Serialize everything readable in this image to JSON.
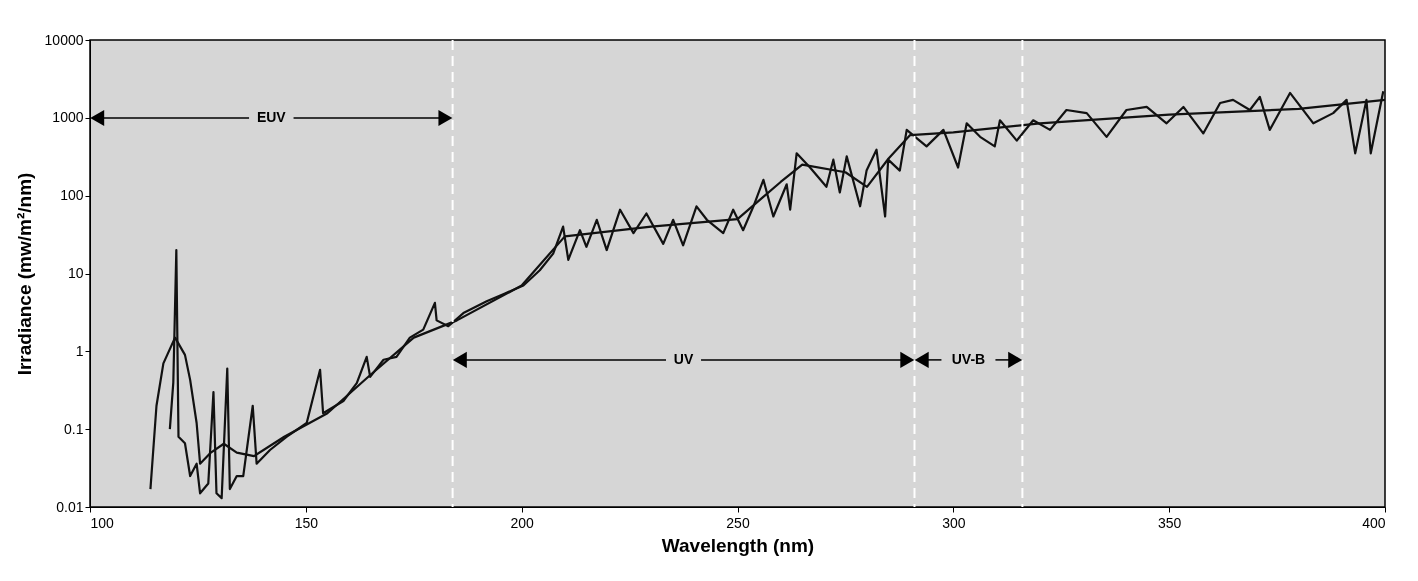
{
  "chart_data": {
    "type": "line",
    "xlabel": "Wavelength (nm)",
    "ylabel": "Irradiance (mw/m²/nm)",
    "log": "y",
    "xlim": [
      100,
      400
    ],
    "ylim": [
      0.01,
      10000
    ],
    "xticks": [
      100,
      150,
      200,
      250,
      300,
      350,
      400
    ],
    "yticks": [
      0.01,
      0.1,
      1,
      10,
      100,
      1000,
      10000
    ],
    "grid": false,
    "line_style": "solid",
    "series": [
      {
        "color": "#111111",
        "x": [
          118.5,
          119.3,
          120,
          120.5,
          122,
          123.2,
          124.7,
          125.5,
          127.4,
          128.6,
          129.3,
          130.5,
          131.8,
          132.4,
          134,
          135.5,
          137.7,
          138.6,
          141.7,
          145.6,
          150.2,
          153.3,
          154,
          158.7,
          161.8,
          164.1,
          164.9,
          168,
          171,
          174.1,
          177.2,
          179.9,
          180.3,
          183,
          186.5,
          191.9,
          196,
          200.4,
          204.2,
          207.3,
          209.6,
          210.8,
          213.5,
          215,
          217.4,
          219.7,
          222.8,
          225.9,
          228.9,
          232.8,
          235.1,
          237.4,
          240.5,
          242.9,
          246.7,
          249,
          251.3,
          253.7,
          256,
          258.3,
          261.4,
          262.2,
          263.7,
          266.8,
          270.6,
          272.2,
          273.7,
          275.3,
          278.4,
          279.9,
          282.2,
          284.2,
          284.9,
          287.6,
          289.2,
          293.8,
          297.7,
          301.1,
          303.1,
          306.2,
          309.6,
          310.8,
          314.7,
          318.5,
          322.4,
          326.2,
          330.9,
          335.5,
          340.1,
          344.8,
          349.4,
          353.3,
          357.9,
          361.8,
          364.8,
          368.7,
          371,
          373.3,
          378,
          383.4,
          388,
          391.1,
          393.1,
          395.7,
          396.7,
          399.6
        ],
        "values": [
          0.1,
          0.4,
          20,
          0.08,
          0.066,
          0.025,
          0.036,
          0.015,
          0.02,
          0.3,
          0.015,
          0.013,
          0.6,
          0.017,
          0.025,
          0.025,
          0.2,
          0.036,
          0.054,
          0.08,
          0.12,
          0.58,
          0.16,
          0.23,
          0.39,
          0.85,
          0.47,
          0.78,
          0.85,
          1.5,
          1.9,
          4.2,
          2.5,
          2.1,
          3.1,
          4.4,
          5.5,
          7,
          11,
          18,
          40,
          15,
          36,
          22,
          49,
          20,
          66,
          33,
          59,
          24,
          49,
          23,
          73,
          49,
          33,
          66,
          36,
          73,
          160,
          54,
          140,
          66,
          350,
          230,
          130,
          290,
          110,
          320,
          73,
          210,
          390,
          54,
          290,
          210,
          700,
          430,
          700,
          230,
          850,
          570,
          430,
          930,
          510,
          930,
          700,
          1260,
          1150,
          570,
          1260,
          1380,
          850,
          1380,
          630,
          1550,
          1700,
          1260,
          1860,
          700,
          2090,
          850,
          1150,
          1700,
          350,
          1700,
          350,
          2190
        ]
      },
      {
        "color": "#111111",
        "x": [
          114,
          115.4,
          117,
          119.7,
          122,
          123.2,
          124.7,
          125.5,
          128,
          131,
          134,
          138,
          145,
          155,
          165,
          175,
          185,
          200,
          210,
          230,
          250,
          260,
          265,
          275,
          280,
          285,
          290,
          300,
          320,
          350,
          380,
          400
        ],
        "values": [
          0.017,
          0.2,
          0.7,
          1.5,
          0.9,
          0.43,
          0.12,
          0.036,
          0.05,
          0.065,
          0.05,
          0.045,
          0.08,
          0.16,
          0.5,
          1.5,
          2.5,
          7,
          30,
          40,
          50,
          150,
          250,
          200,
          130,
          300,
          600,
          650,
          850,
          1100,
          1300,
          1700
        ]
      }
    ],
    "ref_lines": [
      {
        "axis": "x",
        "value": 184,
        "color": "#ffffff",
        "line_style": "dashed"
      },
      {
        "axis": "x",
        "value": 291,
        "color": "#ffffff",
        "line_style": "dashed"
      },
      {
        "axis": "x",
        "value": 316,
        "color": "#ffffff",
        "line_style": "dashed"
      }
    ],
    "annotations": [
      "EUV",
      "UV",
      "UV-B"
    ]
  }
}
